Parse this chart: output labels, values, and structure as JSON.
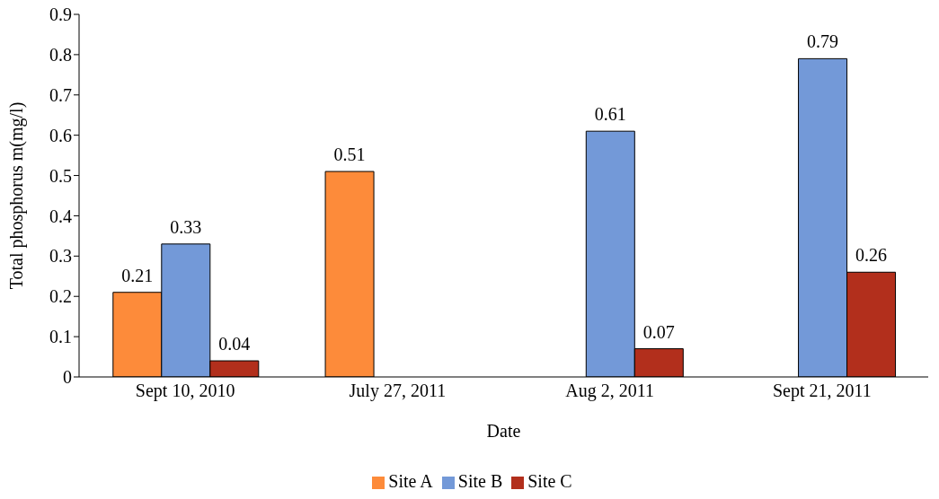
{
  "chart_data": {
    "type": "bar",
    "xlabel": "Date",
    "ylabel": "Total phosphorus m(mg/l)",
    "categories": [
      "Sept 10, 2010",
      "July 27, 2011",
      "Aug 2, 2011",
      "Sept 21, 2011"
    ],
    "series": [
      {
        "name": "Site A",
        "color": "#fd8b3a",
        "values": [
          0.21,
          0.51,
          null,
          null
        ]
      },
      {
        "name": "Site B",
        "color": "#7399d8",
        "values": [
          0.33,
          null,
          0.61,
          0.79
        ]
      },
      {
        "name": "Site C",
        "color": "#b22f1c",
        "values": [
          0.04,
          null,
          0.07,
          0.26
        ]
      }
    ],
    "ylim": [
      0,
      0.9
    ],
    "yticks": [
      0,
      0.1,
      0.2,
      0.3,
      0.4,
      0.5,
      0.6,
      0.7,
      0.8,
      0.9
    ],
    "grid": false,
    "legend": "bottom",
    "data_labels": true
  }
}
